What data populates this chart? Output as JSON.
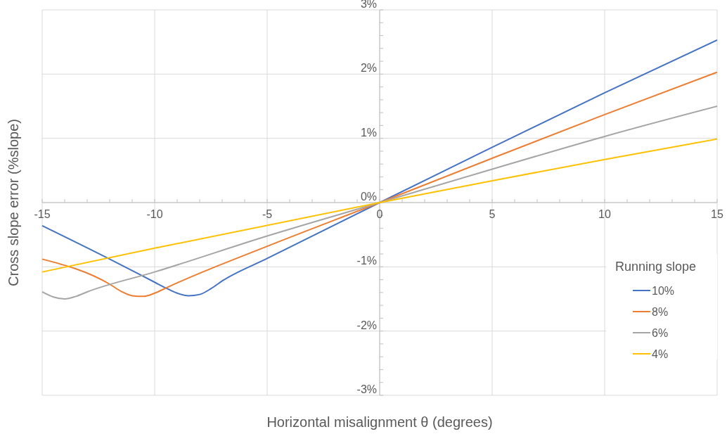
{
  "chart_data": {
    "type": "line",
    "xlabel": "Horizontal misalignment θ (degrees)",
    "ylabel": "Cross slope error (%slope)",
    "legend_title": "Running slope",
    "legend": "bottom right",
    "grid": true,
    "line_style": "solid",
    "xlim": [
      -15,
      15
    ],
    "xticks": [
      -15,
      -10,
      -5,
      0,
      5,
      10,
      15
    ],
    "ylim": [
      -3,
      3
    ],
    "yticks": [
      {
        "value": -3,
        "label": "-3%"
      },
      {
        "value": -2,
        "label": "-2%"
      },
      {
        "value": -1,
        "label": "-1%"
      },
      {
        "value": 0,
        "label": "0%"
      },
      {
        "value": 1,
        "label": "1%"
      },
      {
        "value": 2,
        "label": "2%"
      },
      {
        "value": 3,
        "label": "3%"
      }
    ],
    "series": [
      {
        "name": "10%",
        "color": "#4472c4",
        "x": [
          -15,
          -12,
          -10,
          -9.5,
          -9,
          -8.5,
          -8,
          -7.5,
          -7,
          -5,
          0,
          5,
          10,
          15
        ],
        "values": [
          -0.36,
          -0.88,
          -1.24,
          -1.33,
          -1.41,
          -1.45,
          -1.43,
          -1.34,
          -1.22,
          -0.87,
          0,
          0.86,
          1.71,
          2.53
        ]
      },
      {
        "name": "8%",
        "color": "#ed7d31",
        "x": [
          -15,
          -12,
          -11.5,
          -11,
          -10.5,
          -10,
          -9.5,
          -9,
          -5,
          0,
          5,
          10,
          15
        ],
        "values": [
          -0.88,
          -1.27,
          -1.38,
          -1.45,
          -1.46,
          -1.41,
          -1.33,
          -1.25,
          -0.68,
          0,
          0.69,
          1.37,
          2.03
        ]
      },
      {
        "name": "6%",
        "color": "#a5a5a5",
        "x": [
          -15,
          -14.5,
          -14,
          -13.5,
          -13,
          -10,
          -5,
          0,
          5,
          10,
          15
        ],
        "values": [
          -1.39,
          -1.47,
          -1.5,
          -1.46,
          -1.39,
          -1.08,
          -0.52,
          0,
          0.52,
          1.03,
          1.5
        ]
      },
      {
        "name": "4%",
        "color": "#ffc000",
        "x": [
          -15,
          -10,
          0,
          5,
          10,
          15
        ],
        "values": [
          -1.08,
          -0.71,
          0,
          0.34,
          0.67,
          0.99
        ]
      }
    ]
  }
}
